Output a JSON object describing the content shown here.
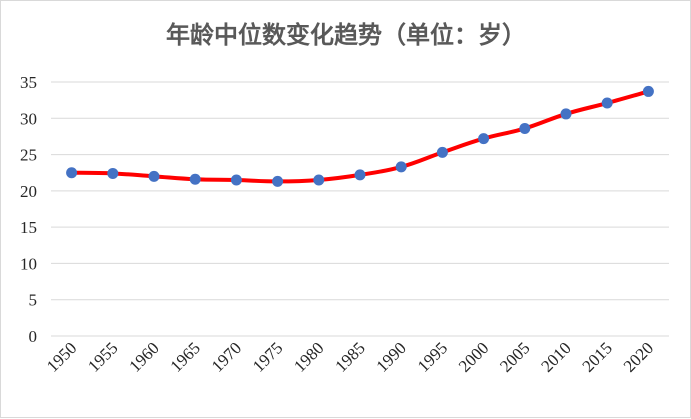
{
  "chart_data": {
    "type": "line",
    "title": "年龄中位数变化趋势（单位：岁）",
    "xlabel": "",
    "ylabel": "",
    "categories": [
      "1950",
      "1955",
      "1960",
      "1965",
      "1970",
      "1975",
      "1980",
      "1985",
      "1990",
      "1995",
      "2000",
      "2005",
      "2010",
      "2015",
      "2020"
    ],
    "series": [
      {
        "values": [
          22.5,
          22.4,
          22.0,
          21.6,
          21.5,
          21.3,
          21.5,
          22.2,
          23.3,
          25.3,
          27.2,
          28.6,
          30.6,
          32.1,
          33.7
        ]
      }
    ],
    "ylim": [
      0,
      35
    ],
    "yticks": [
      "0",
      "5",
      "10",
      "15",
      "20",
      "25",
      "30",
      "35"
    ],
    "grid": true,
    "legend": "none",
    "colors": {
      "line": "#ff0000",
      "marker": "#4472c4",
      "grid": "#d9d9d9"
    }
  }
}
